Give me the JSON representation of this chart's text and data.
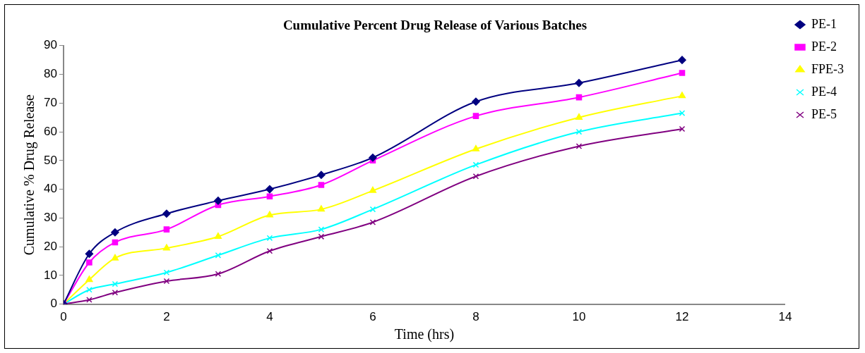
{
  "chart_data": {
    "type": "line",
    "title": "Cumulative Percent Drug Release of Various Batches",
    "xlabel": "Time (hrs)",
    "ylabel": "Cumulative % Drug Release",
    "x": [
      0,
      0.5,
      1,
      2,
      3,
      4,
      5,
      6,
      8,
      10,
      12
    ],
    "series": [
      {
        "name": "PE-1",
        "color": "#000080",
        "marker": "diamond",
        "values": [
          0,
          17.5,
          25,
          31.5,
          36,
          40,
          45,
          51,
          70.5,
          77,
          85
        ]
      },
      {
        "name": "PE-2",
        "color": "#ff00ff",
        "marker": "square",
        "values": [
          0,
          14.5,
          21.5,
          26,
          34.5,
          37.5,
          41.5,
          50,
          65.5,
          72,
          80.5
        ]
      },
      {
        "name": "FPE-3",
        "color": "#ffff00",
        "marker": "triangle",
        "values": [
          0,
          8.5,
          16,
          19.5,
          23.5,
          31,
          33,
          39.5,
          54,
          65,
          72.5
        ]
      },
      {
        "name": "PE-4",
        "color": "#00ffff",
        "marker": "cross",
        "values": [
          0,
          5,
          7,
          11,
          17,
          23,
          26,
          33,
          48.5,
          60,
          66.5
        ]
      },
      {
        "name": "PE-5",
        "color": "#800080",
        "marker": "cross",
        "values": [
          0,
          1.5,
          4,
          8,
          10.5,
          18.5,
          23.5,
          28.5,
          44.5,
          55,
          61
        ]
      }
    ],
    "xlim": [
      0,
      14
    ],
    "xticks": [
      0,
      2,
      4,
      6,
      8,
      10,
      12,
      14
    ],
    "ylim": [
      0,
      90
    ],
    "yticks": [
      0,
      10,
      20,
      30,
      40,
      50,
      60,
      70,
      80,
      90
    ],
    "grid": false,
    "legend": "top right"
  }
}
